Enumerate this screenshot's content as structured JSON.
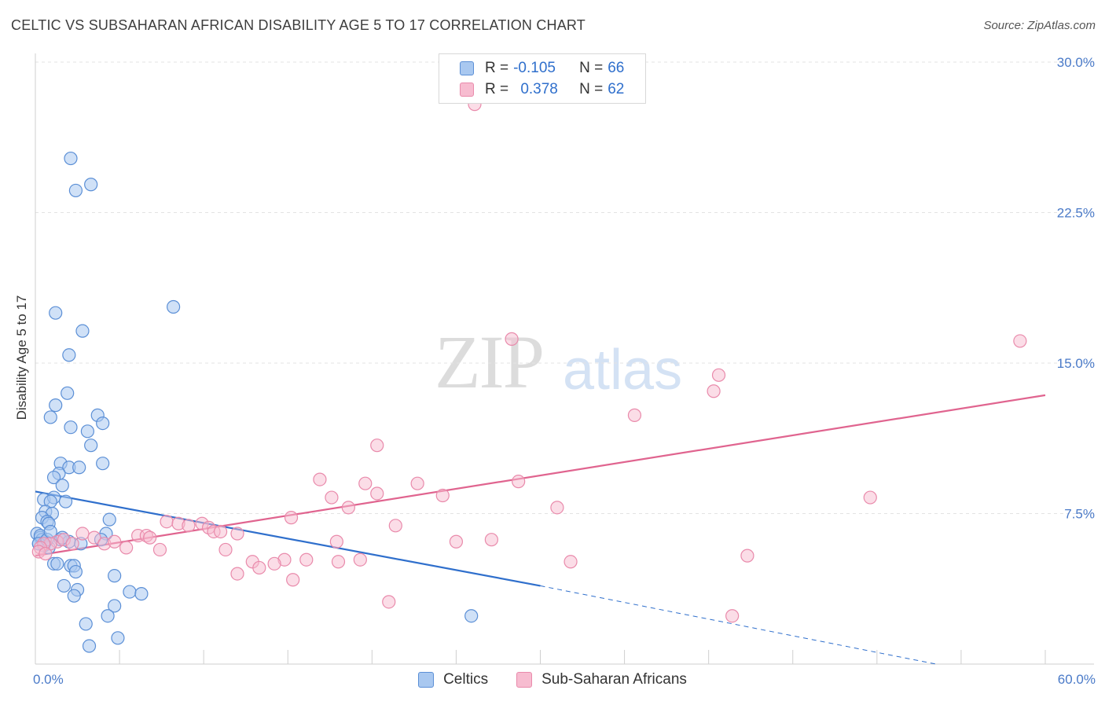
{
  "title": "CELTIC VS SUBSAHARAN AFRICAN DISABILITY AGE 5 TO 17 CORRELATION CHART",
  "source": "Source: ZipAtlas.com",
  "watermark": {
    "zip": "ZIP",
    "atlas": "atlas"
  },
  "legend": {
    "celtic": {
      "r_label": "R =",
      "r_value": "-0.105",
      "n_label": "N =",
      "n_value": "66"
    },
    "subsaharan": {
      "r_label": "R =",
      "r_value": "0.378",
      "n_label": "N =",
      "n_value": "62"
    }
  },
  "bottom_legend": {
    "celtic": "Celtics",
    "subsaharan": "Sub-Saharan Africans"
  },
  "colors": {
    "celtic_fill": "#a9c8f0",
    "celtic_stroke": "#5b8fd6",
    "celtic_line": "#2f6fcc",
    "subsaharan_fill": "#f7bcd0",
    "subsaharan_stroke": "#e98aab",
    "subsaharan_line": "#e0648f",
    "grid": "#e3e3e3",
    "tick_label": "#4a7ac8"
  },
  "chart_data": {
    "type": "scatter",
    "title": "CELTIC VS SUBSAHARAN AFRICAN DISABILITY AGE 5 TO 17 CORRELATION CHART",
    "xlabel": "",
    "ylabel": "Disability Age 5 to 17",
    "xlim": [
      0,
      60
    ],
    "ylim": [
      0,
      30
    ],
    "x_ticks": [
      0,
      60
    ],
    "x_tick_labels": [
      "0.0%",
      "60.0%"
    ],
    "y_ticks": [
      7.5,
      15,
      22.5,
      30
    ],
    "y_tick_labels": [
      "7.5%",
      "15.0%",
      "22.5%",
      "30.0%"
    ],
    "grid": true,
    "legend_position": "top-center",
    "series": [
      {
        "name": "Celtics",
        "points": [
          [
            2.1,
            25.2
          ],
          [
            2.4,
            23.6
          ],
          [
            3.3,
            23.9
          ],
          [
            8.2,
            17.8
          ],
          [
            1.2,
            17.5
          ],
          [
            2.8,
            16.6
          ],
          [
            2.0,
            15.4
          ],
          [
            1.9,
            13.5
          ],
          [
            1.2,
            12.9
          ],
          [
            0.9,
            12.3
          ],
          [
            3.7,
            12.4
          ],
          [
            4.0,
            12.0
          ],
          [
            2.1,
            11.8
          ],
          [
            3.1,
            11.6
          ],
          [
            3.3,
            10.9
          ],
          [
            1.5,
            10.0
          ],
          [
            4.0,
            10.0
          ],
          [
            2.0,
            9.8
          ],
          [
            2.6,
            9.8
          ],
          [
            1.4,
            9.5
          ],
          [
            1.1,
            9.3
          ],
          [
            1.6,
            8.9
          ],
          [
            0.5,
            8.2
          ],
          [
            1.1,
            8.3
          ],
          [
            0.9,
            8.1
          ],
          [
            1.8,
            8.1
          ],
          [
            0.6,
            7.6
          ],
          [
            1.0,
            7.5
          ],
          [
            0.4,
            7.3
          ],
          [
            0.7,
            7.1
          ],
          [
            0.8,
            7.0
          ],
          [
            4.4,
            7.2
          ],
          [
            0.1,
            6.5
          ],
          [
            0.3,
            6.3
          ],
          [
            0.4,
            6.2
          ],
          [
            0.6,
            6.1
          ],
          [
            0.2,
            6.0
          ],
          [
            0.5,
            5.9
          ],
          [
            0.8,
            5.8
          ],
          [
            1.5,
            6.2
          ],
          [
            2.0,
            6.1
          ],
          [
            2.7,
            6.0
          ],
          [
            4.2,
            6.5
          ],
          [
            0.3,
            6.4
          ],
          [
            1.1,
            5.0
          ],
          [
            1.3,
            5.0
          ],
          [
            2.1,
            4.9
          ],
          [
            2.3,
            4.9
          ],
          [
            2.4,
            4.6
          ],
          [
            4.7,
            4.4
          ],
          [
            1.7,
            3.9
          ],
          [
            2.5,
            3.7
          ],
          [
            5.6,
            3.6
          ],
          [
            6.3,
            3.5
          ],
          [
            2.3,
            3.4
          ],
          [
            4.7,
            2.9
          ],
          [
            4.3,
            2.4
          ],
          [
            3.0,
            2.0
          ],
          [
            3.2,
            0.9
          ],
          [
            4.9,
            1.3
          ],
          [
            25.9,
            2.4
          ],
          [
            0.2,
            6.0
          ],
          [
            0.7,
            6.2
          ],
          [
            1.6,
            6.3
          ],
          [
            3.9,
            6.2
          ],
          [
            0.9,
            6.6
          ]
        ]
      },
      {
        "name": "Sub-Saharan Africans",
        "points": [
          [
            26.1,
            27.9
          ],
          [
            27.7,
            28.8
          ],
          [
            28.3,
            16.2
          ],
          [
            58.5,
            16.1
          ],
          [
            40.6,
            14.4
          ],
          [
            40.3,
            13.6
          ],
          [
            35.6,
            12.4
          ],
          [
            20.3,
            10.9
          ],
          [
            16.9,
            9.2
          ],
          [
            19.6,
            9.0
          ],
          [
            22.7,
            9.0
          ],
          [
            28.7,
            9.1
          ],
          [
            17.6,
            8.3
          ],
          [
            20.3,
            8.5
          ],
          [
            24.2,
            8.4
          ],
          [
            49.6,
            8.3
          ],
          [
            18.6,
            7.8
          ],
          [
            31.0,
            7.8
          ],
          [
            15.2,
            7.3
          ],
          [
            21.4,
            6.9
          ],
          [
            7.8,
            7.1
          ],
          [
            8.5,
            7.0
          ],
          [
            9.1,
            6.9
          ],
          [
            9.9,
            7.0
          ],
          [
            10.3,
            6.8
          ],
          [
            10.6,
            6.6
          ],
          [
            11.0,
            6.6
          ],
          [
            12.0,
            6.5
          ],
          [
            6.1,
            6.4
          ],
          [
            6.6,
            6.4
          ],
          [
            6.8,
            6.3
          ],
          [
            2.8,
            6.5
          ],
          [
            3.5,
            6.3
          ],
          [
            4.1,
            6.0
          ],
          [
            4.7,
            6.1
          ],
          [
            5.4,
            5.8
          ],
          [
            7.4,
            5.7
          ],
          [
            1.3,
            6.1
          ],
          [
            1.7,
            6.2
          ],
          [
            2.2,
            6.0
          ],
          [
            0.9,
            6.0
          ],
          [
            0.5,
            6.0
          ],
          [
            0.3,
            5.8
          ],
          [
            0.2,
            5.6
          ],
          [
            0.6,
            5.5
          ],
          [
            11.3,
            5.7
          ],
          [
            14.8,
            5.2
          ],
          [
            16.1,
            5.2
          ],
          [
            17.9,
            6.1
          ],
          [
            19.3,
            5.2
          ],
          [
            25.0,
            6.1
          ],
          [
            27.1,
            6.2
          ],
          [
            31.8,
            5.1
          ],
          [
            14.2,
            5.0
          ],
          [
            12.9,
            5.1
          ],
          [
            13.3,
            4.8
          ],
          [
            12.0,
            4.5
          ],
          [
            15.3,
            4.2
          ],
          [
            18.0,
            5.1
          ],
          [
            21.0,
            3.1
          ],
          [
            42.3,
            5.4
          ],
          [
            41.4,
            2.4
          ]
        ]
      }
    ],
    "trendlines": [
      {
        "series": "Celtics",
        "x": [
          0,
          30
        ],
        "y": [
          8.6,
          3.9
        ],
        "extends_dashed_to": [
          53.5,
          0.0
        ]
      },
      {
        "series": "Sub-Saharan Africans",
        "x": [
          0,
          60
        ],
        "y": [
          5.4,
          13.4
        ]
      }
    ]
  }
}
